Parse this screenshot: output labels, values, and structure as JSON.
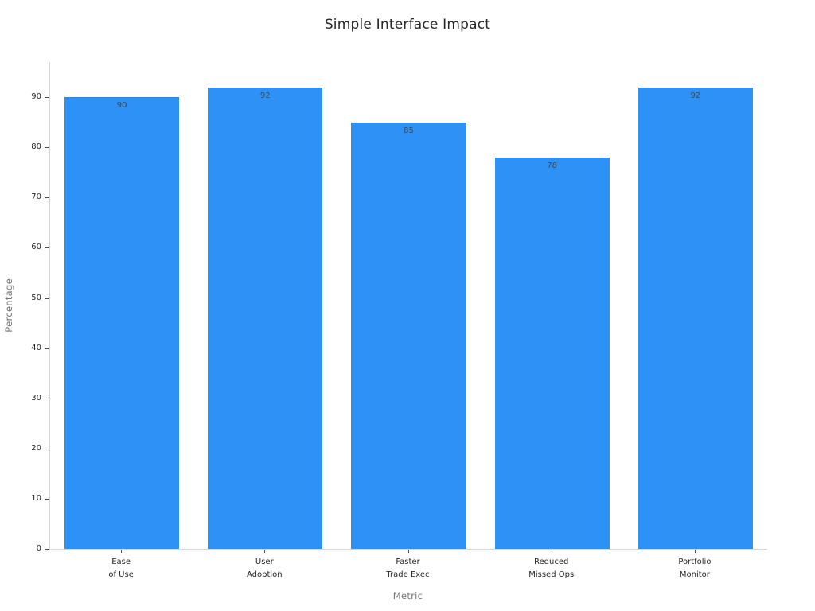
{
  "chart_data": {
    "type": "bar",
    "title": "Simple Interface Impact",
    "xlabel": "Metric",
    "ylabel": "Percentage",
    "categories": [
      "Ease\nof Use",
      "User\nAdoption",
      "Faster\nTrade Exec",
      "Reduced\nMissed Ops",
      "Portfolio\nMonitor"
    ],
    "values": [
      90,
      92,
      85,
      78,
      92
    ],
    "ylim": [
      0,
      97
    ],
    "yticks": [
      0,
      10,
      20,
      30,
      40,
      50,
      60,
      70,
      80,
      90
    ],
    "grid": false,
    "legend": "none",
    "bar_width_fraction": 0.8,
    "colors": {
      "bar": "#2E91F5",
      "bar_edge": "#2384EC",
      "value_label": "#3D4A57",
      "tick_label": "#262626",
      "axis_label": "#767676",
      "spine": "#D6D6D6",
      "tick_mark": "#4A4A4A",
      "title": "#262626",
      "background": "#FFFFFF"
    }
  }
}
